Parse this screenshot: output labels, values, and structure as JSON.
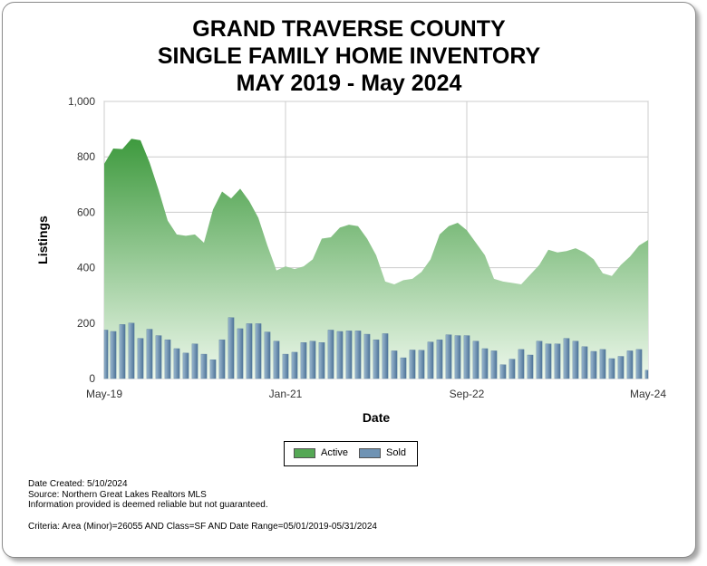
{
  "title_lines": [
    "GRAND TRAVERSE COUNTY",
    "SINGLE FAMILY HOME INVENTORY",
    "MAY 2019 - May 2024"
  ],
  "footer": {
    "created": "Date Created: 5/10/2024",
    "source": "Source: Northern Great Lakes Realtors MLS",
    "disclaimer": "Information provided is deemed reliable but not guaranteed.",
    "criteria": "Criteria: Area (Minor)=26055 AND Class=SF AND Date Range=05/01/2019-05/31/2024"
  },
  "colors": {
    "active_dark": "#3e9a3e",
    "active_light": "#eef8ec",
    "sold_top": "#9ab7cf",
    "sold_bottom": "#4d7397",
    "grid": "#cccccc"
  },
  "chart_data": {
    "type": "area",
    "xlabel": "Date",
    "ylabel": "Listings",
    "ylim": [
      0,
      1000
    ],
    "y_ticks": [
      "0",
      "200",
      "400",
      "600",
      "800",
      "1,000"
    ],
    "x_ticks": [
      {
        "label": "May-19",
        "index": 0
      },
      {
        "label": "Jan-21",
        "index": 20
      },
      {
        "label": "Sep-22",
        "index": 40
      },
      {
        "label": "May-24",
        "index": 60
      }
    ],
    "grid": true,
    "legend_placement": "bottom-center",
    "categories": [
      "2019-05",
      "2019-06",
      "2019-07",
      "2019-08",
      "2019-09",
      "2019-10",
      "2019-11",
      "2019-12",
      "2020-01",
      "2020-02",
      "2020-03",
      "2020-04",
      "2020-05",
      "2020-06",
      "2020-07",
      "2020-08",
      "2020-09",
      "2020-10",
      "2020-11",
      "2020-12",
      "2021-01",
      "2021-02",
      "2021-03",
      "2021-04",
      "2021-05",
      "2021-06",
      "2021-07",
      "2021-08",
      "2021-09",
      "2021-10",
      "2021-11",
      "2021-12",
      "2022-01",
      "2022-02",
      "2022-03",
      "2022-04",
      "2022-05",
      "2022-06",
      "2022-07",
      "2022-08",
      "2022-09",
      "2022-10",
      "2022-11",
      "2022-12",
      "2023-01",
      "2023-02",
      "2023-03",
      "2023-04",
      "2023-05",
      "2023-06",
      "2023-07",
      "2023-08",
      "2023-09",
      "2023-10",
      "2023-11",
      "2023-12",
      "2024-01",
      "2024-02",
      "2024-03",
      "2024-04",
      "2024-05"
    ],
    "series": [
      {
        "name": "Active",
        "type": "area",
        "values": [
          775,
          830,
          828,
          865,
          860,
          780,
          680,
          570,
          520,
          515,
          520,
          490,
          610,
          675,
          650,
          685,
          640,
          580,
          480,
          390,
          405,
          395,
          405,
          430,
          505,
          510,
          545,
          555,
          550,
          505,
          445,
          350,
          340,
          355,
          360,
          385,
          430,
          520,
          550,
          562,
          535,
          490,
          445,
          360,
          350,
          345,
          340,
          375,
          410,
          465,
          455,
          460,
          470,
          455,
          430,
          380,
          370,
          410,
          440,
          480,
          500
        ]
      },
      {
        "name": "Sold",
        "type": "bar",
        "values": [
          175,
          170,
          195,
          200,
          145,
          178,
          155,
          140,
          108,
          92,
          125,
          88,
          68,
          140,
          220,
          180,
          198,
          198,
          168,
          135,
          88,
          95,
          130,
          135,
          130,
          175,
          170,
          172,
          172,
          160,
          140,
          162,
          100,
          75,
          103,
          102,
          132,
          140,
          158,
          155,
          155,
          135,
          108,
          100,
          50,
          70,
          105,
          85,
          135,
          125,
          125,
          145,
          135,
          115,
          98,
          105,
          72,
          80,
          100,
          105,
          30
        ]
      }
    ]
  },
  "legend": [
    {
      "label": "Active",
      "color": "#55a855"
    },
    {
      "label": "Sold",
      "color": "#6f93b4"
    }
  ]
}
